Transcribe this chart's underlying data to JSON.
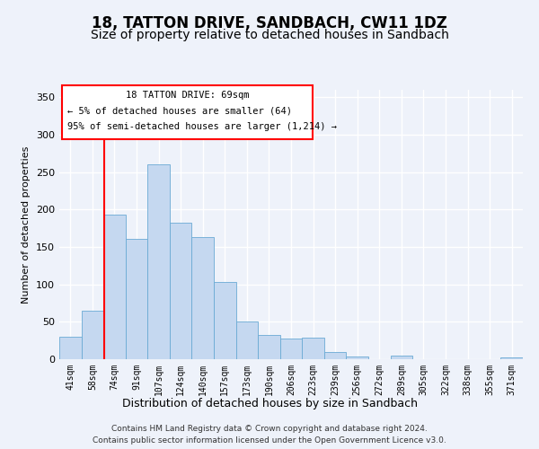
{
  "title": "18, TATTON DRIVE, SANDBACH, CW11 1DZ",
  "subtitle": "Size of property relative to detached houses in Sandbach",
  "xlabel": "Distribution of detached houses by size in Sandbach",
  "ylabel": "Number of detached properties",
  "categories": [
    "41sqm",
    "58sqm",
    "74sqm",
    "91sqm",
    "107sqm",
    "124sqm",
    "140sqm",
    "157sqm",
    "173sqm",
    "190sqm",
    "206sqm",
    "223sqm",
    "239sqm",
    "256sqm",
    "272sqm",
    "289sqm",
    "305sqm",
    "322sqm",
    "338sqm",
    "355sqm",
    "371sqm"
  ],
  "values": [
    30,
    65,
    193,
    161,
    260,
    183,
    163,
    103,
    50,
    33,
    28,
    29,
    10,
    4,
    0,
    5,
    0,
    0,
    0,
    0,
    2
  ],
  "bar_color": "#c5d8f0",
  "bar_edge_color": "#6aaad4",
  "ylim": [
    0,
    360
  ],
  "yticks": [
    0,
    50,
    100,
    150,
    200,
    250,
    300,
    350
  ],
  "red_line_x": 1.55,
  "annotation_title": "18 TATTON DRIVE: 69sqm",
  "annotation_line1": "← 5% of detached houses are smaller (64)",
  "annotation_line2": "95% of semi-detached houses are larger (1,214) →",
  "footer_line1": "Contains HM Land Registry data © Crown copyright and database right 2024.",
  "footer_line2": "Contains public sector information licensed under the Open Government Licence v3.0.",
  "background_color": "#eef2fa",
  "plot_bg_color": "#eef2fa",
  "grid_color": "#ffffff",
  "title_fontsize": 12,
  "subtitle_fontsize": 10
}
